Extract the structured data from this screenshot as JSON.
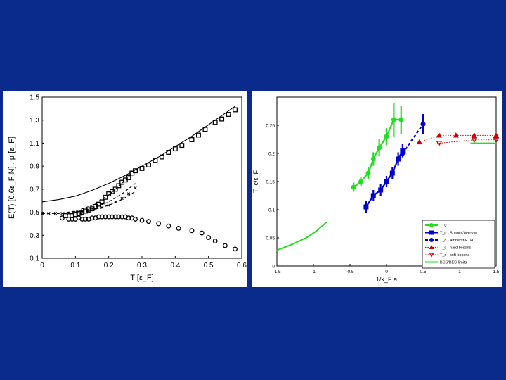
{
  "colors": {
    "background": "#0a2a8c",
    "green": "#22dd22",
    "blue": "#0000cc",
    "red": "#cc0000"
  },
  "chart_data": [
    {
      "type": "scatter",
      "xlabel": "T [ε_F]",
      "ylabel": "E(T) [0.6ε_F N] , μ [ε_F]",
      "xlim": [
        0,
        0.6
      ],
      "ylim": [
        0.1,
        1.5
      ],
      "xticks": [
        "0",
        "0.1",
        "0.2",
        "0.3",
        "0.4",
        "0.5",
        "0.6"
      ],
      "yticks": [
        "0.1",
        "0.3",
        "0.5",
        "0.7",
        "0.9",
        "1.1",
        "1.3",
        "1.5"
      ],
      "grid": false,
      "series": [
        {
          "marker": "square",
          "x": [
            0.07,
            0.09,
            0.1,
            0.11,
            0.12,
            0.13,
            0.14,
            0.15,
            0.16,
            0.17,
            0.18,
            0.19,
            0.2,
            0.21,
            0.22,
            0.23,
            0.24,
            0.25,
            0.26,
            0.27,
            0.28,
            0.3,
            0.32,
            0.34,
            0.36,
            0.38,
            0.4,
            0.42,
            0.45,
            0.47,
            0.49,
            0.52,
            0.54,
            0.56,
            0.58
          ],
          "y": [
            0.47,
            0.47,
            0.48,
            0.49,
            0.5,
            0.51,
            0.52,
            0.53,
            0.55,
            0.57,
            0.59,
            0.63,
            0.66,
            0.68,
            0.7,
            0.73,
            0.76,
            0.78,
            0.8,
            0.84,
            0.86,
            0.88,
            0.91,
            0.95,
            0.98,
            1.02,
            1.05,
            1.08,
            1.13,
            1.17,
            1.22,
            1.28,
            1.31,
            1.35,
            1.39
          ]
        },
        {
          "marker": "circle",
          "x": [
            0.06,
            0.08,
            0.09,
            0.1,
            0.11,
            0.12,
            0.13,
            0.14,
            0.15,
            0.16,
            0.17,
            0.18,
            0.19,
            0.2,
            0.21,
            0.22,
            0.23,
            0.24,
            0.25,
            0.26,
            0.27,
            0.28,
            0.3,
            0.32,
            0.35,
            0.38,
            0.41,
            0.45,
            0.48,
            0.5,
            0.52,
            0.55,
            0.58
          ],
          "y": [
            0.45,
            0.44,
            0.44,
            0.44,
            0.45,
            0.44,
            0.44,
            0.44,
            0.45,
            0.45,
            0.46,
            0.46,
            0.46,
            0.46,
            0.46,
            0.46,
            0.46,
            0.46,
            0.46,
            0.45,
            0.45,
            0.44,
            0.43,
            0.42,
            0.4,
            0.38,
            0.36,
            0.34,
            0.32,
            0.28,
            0.25,
            0.21,
            0.18
          ]
        },
        {
          "line": "solid",
          "x": [
            0,
            0.05,
            0.1,
            0.15,
            0.2,
            0.25,
            0.3,
            0.35,
            0.4,
            0.45,
            0.5,
            0.55,
            0.58
          ],
          "y": [
            0.59,
            0.61,
            0.64,
            0.69,
            0.75,
            0.82,
            0.9,
            0.98,
            1.07,
            1.16,
            1.26,
            1.36,
            1.42
          ]
        },
        {
          "line": "dashed",
          "x": [
            0,
            0.05,
            0.1,
            0.15,
            0.2,
            0.24,
            0.28
          ],
          "y": [
            0.49,
            0.49,
            0.51,
            0.56,
            0.65,
            0.75,
            0.88
          ]
        },
        {
          "line": "dashed",
          "x": [
            0,
            0.05,
            0.1,
            0.15,
            0.2,
            0.24,
            0.28
          ],
          "y": [
            0.49,
            0.49,
            0.5,
            0.53,
            0.59,
            0.66,
            0.75
          ]
        },
        {
          "line": "dashed",
          "x": [
            0,
            0.05,
            0.1,
            0.15,
            0.2,
            0.24,
            0.28
          ],
          "y": [
            0.49,
            0.49,
            0.5,
            0.52,
            0.56,
            0.61,
            0.68
          ]
        },
        {
          "marker": "cross",
          "x": [
            0,
            0.02,
            0.04,
            0.06,
            0.08,
            0.1,
            0.12,
            0.14,
            0.16,
            0.18,
            0.2,
            0.22,
            0.24,
            0.26,
            0.28
          ],
          "y": [
            0.49,
            0.49,
            0.49,
            0.49,
            0.49,
            0.5,
            0.5,
            0.51,
            0.53,
            0.54,
            0.56,
            0.59,
            0.62,
            0.66,
            0.71
          ]
        }
      ]
    },
    {
      "type": "line",
      "xlabel": "1/k_F a",
      "ylabel": "T_c/ε_F",
      "xlim": [
        -1.5,
        1.5
      ],
      "ylim": [
        0,
        0.3
      ],
      "xticks": [
        "-1.5",
        "-1",
        "-0.5",
        "0",
        "0.5",
        "1",
        "1.5"
      ],
      "yticks": [
        "0",
        "0.05",
        "0.1",
        "0.15",
        "0.2",
        "0.25"
      ],
      "legend": "bottom-right",
      "series": [
        {
          "name": "T_0",
          "color": "#22dd22",
          "marker": "circle",
          "line": "solid",
          "x": [
            -0.45,
            -0.35,
            -0.25,
            -0.18,
            -0.1,
            0.0,
            0.1,
            0.2
          ],
          "y": [
            0.14,
            0.15,
            0.165,
            0.19,
            0.21,
            0.23,
            0.26,
            0.26
          ],
          "err": [
            0.008,
            0.008,
            0.01,
            0.012,
            0.015,
            0.015,
            0.03,
            0.025
          ]
        },
        {
          "name": "T_c - Shanto-Warsaw",
          "color": "#0000cc",
          "marker": "square",
          "line": "solid",
          "x": [
            -0.28,
            -0.18,
            -0.08,
            0.0,
            0.08,
            0.16,
            0.22
          ],
          "y": [
            0.105,
            0.125,
            0.135,
            0.15,
            0.165,
            0.19,
            0.205
          ],
          "err": [
            0.01,
            0.01,
            0.01,
            0.01,
            0.01,
            0.012,
            0.012
          ]
        },
        {
          "name": "T_c - Amherst-ETH",
          "color": "#0000cc",
          "marker": "circle",
          "line": "dashed",
          "x": [
            0.22,
            0.5
          ],
          "y": [
            0.2,
            0.252
          ],
          "err": [
            0.0,
            0.018
          ]
        },
        {
          "name": "T_c - hard bosons",
          "color": "#cc0000",
          "marker": "triangle-up",
          "line": "dotted",
          "x": [
            0.45,
            0.72,
            0.95,
            1.2,
            1.5
          ],
          "y": [
            0.22,
            0.232,
            0.232,
            0.232,
            0.232
          ]
        },
        {
          "name": "T_c - soft bosons",
          "color": "#cc0000",
          "marker": "triangle-down",
          "line": "dotted",
          "x": [
            0.72,
            1.2,
            1.5
          ],
          "y": [
            0.218,
            0.224,
            0.224
          ]
        },
        {
          "name": "BCS/BEC limits",
          "color": "#22dd22",
          "line": "solid",
          "x": [
            -1.5,
            -1.3,
            -1.1,
            -0.95,
            -0.82
          ],
          "y": [
            0.028,
            0.038,
            0.05,
            0.063,
            0.078
          ]
        },
        {
          "color": "#22dd22",
          "line": "solid",
          "x": [
            1.15,
            1.5
          ],
          "y": [
            0.218,
            0.218
          ]
        }
      ]
    }
  ]
}
